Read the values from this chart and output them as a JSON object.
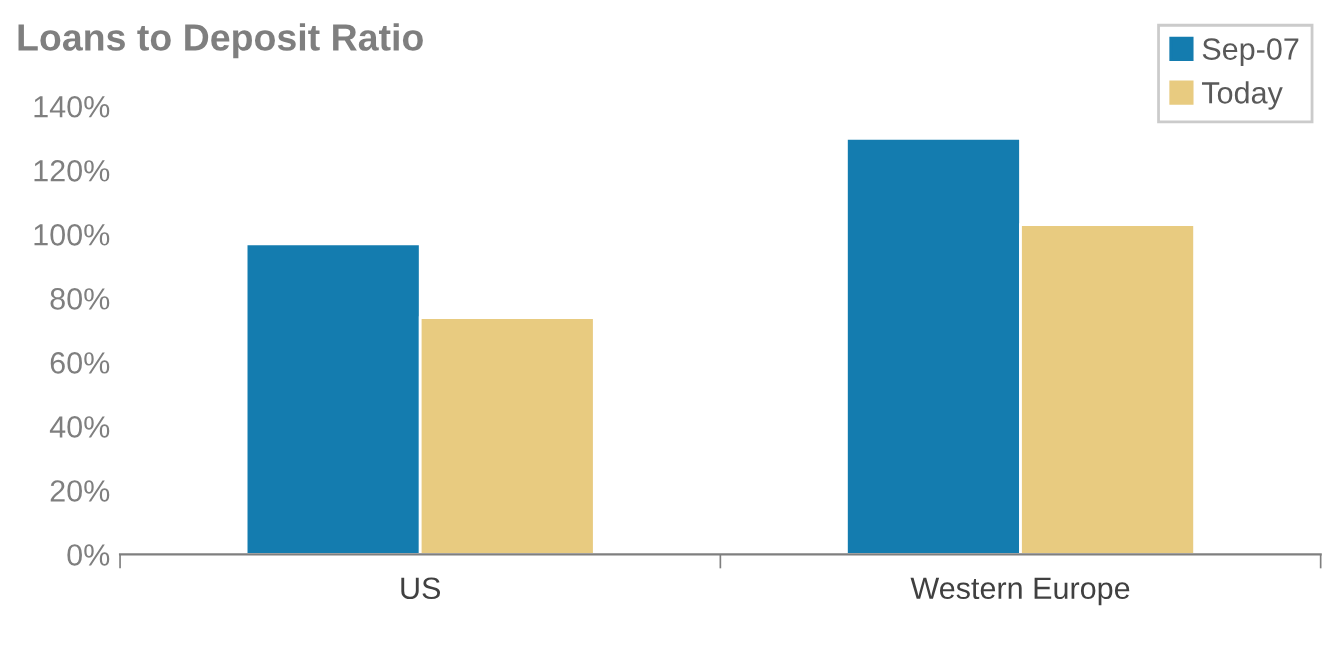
{
  "chart_data": {
    "type": "bar",
    "title": "Loans to Deposit Ratio",
    "categories": [
      "US",
      "Western Europe"
    ],
    "series": [
      {
        "name": "Sep-07",
        "color": "#147caf",
        "values": [
          97,
          130
        ]
      },
      {
        "name": "Today",
        "color": "#e8cb80",
        "values": [
          74,
          103
        ]
      }
    ],
    "ylim": [
      0,
      140
    ],
    "yticks": [
      {
        "value": 0,
        "label": "0%"
      },
      {
        "value": 20,
        "label": "20%"
      },
      {
        "value": 40,
        "label": "40%"
      },
      {
        "value": 60,
        "label": "60%"
      },
      {
        "value": 80,
        "label": "80%"
      },
      {
        "value": 100,
        "label": "100%"
      },
      {
        "value": 120,
        "label": "120%"
      },
      {
        "value": 140,
        "label": "140%"
      }
    ],
    "grid": false,
    "legend": "top right"
  }
}
